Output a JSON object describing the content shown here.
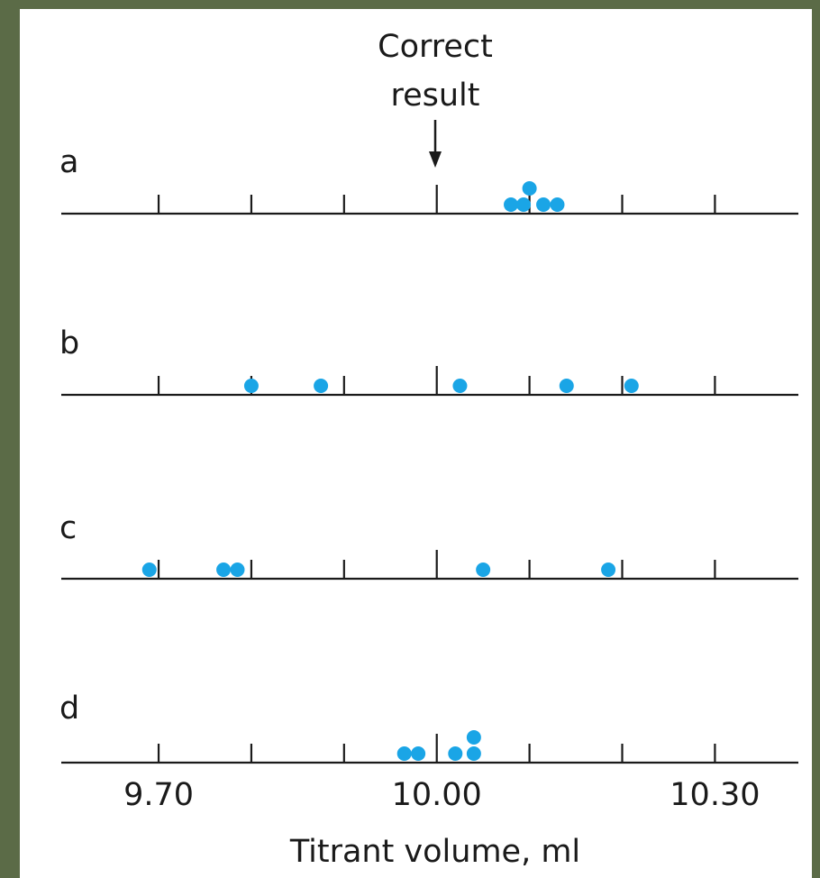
{
  "chart_data": {
    "type": "scatter",
    "annotation": {
      "lines": [
        "Correct",
        "result"
      ],
      "x": 10.0
    },
    "xlabel": "Titrant volume, ml",
    "xlim": [
      9.595,
      10.39
    ],
    "x_ticks": [
      9.7,
      9.8,
      9.9,
      10.0,
      10.1,
      10.2,
      10.3
    ],
    "tick_labels": [
      {
        "value": 9.7,
        "text": "9.70"
      },
      {
        "value": 10.0,
        "text": "10.00"
      },
      {
        "value": 10.3,
        "text": "10.30"
      }
    ],
    "marker_color": "#1aa5e6",
    "series": [
      {
        "name": "a",
        "points": [
          {
            "x": 10.08,
            "y": 0
          },
          {
            "x": 10.09,
            "y": 0
          },
          {
            "x": 10.115,
            "y": 0
          },
          {
            "x": 10.13,
            "y": 0
          },
          {
            "x": 10.1,
            "y": 1
          }
        ]
      },
      {
        "name": "b",
        "points": [
          {
            "x": 9.8,
            "y": 0
          },
          {
            "x": 9.875,
            "y": 0
          },
          {
            "x": 10.025,
            "y": 0
          },
          {
            "x": 10.14,
            "y": 0
          },
          {
            "x": 10.21,
            "y": 0
          }
        ]
      },
      {
        "name": "c",
        "points": [
          {
            "x": 9.69,
            "y": 0
          },
          {
            "x": 9.77,
            "y": 0
          },
          {
            "x": 9.785,
            "y": 0
          },
          {
            "x": 10.05,
            "y": 0
          },
          {
            "x": 10.185,
            "y": 0
          }
        ]
      },
      {
        "name": "d",
        "points": [
          {
            "x": 9.965,
            "y": 0
          },
          {
            "x": 9.98,
            "y": 0
          },
          {
            "x": 10.02,
            "y": 0
          },
          {
            "x": 10.04,
            "y": 0
          },
          {
            "x": 10.04,
            "y": 1
          }
        ]
      }
    ]
  }
}
